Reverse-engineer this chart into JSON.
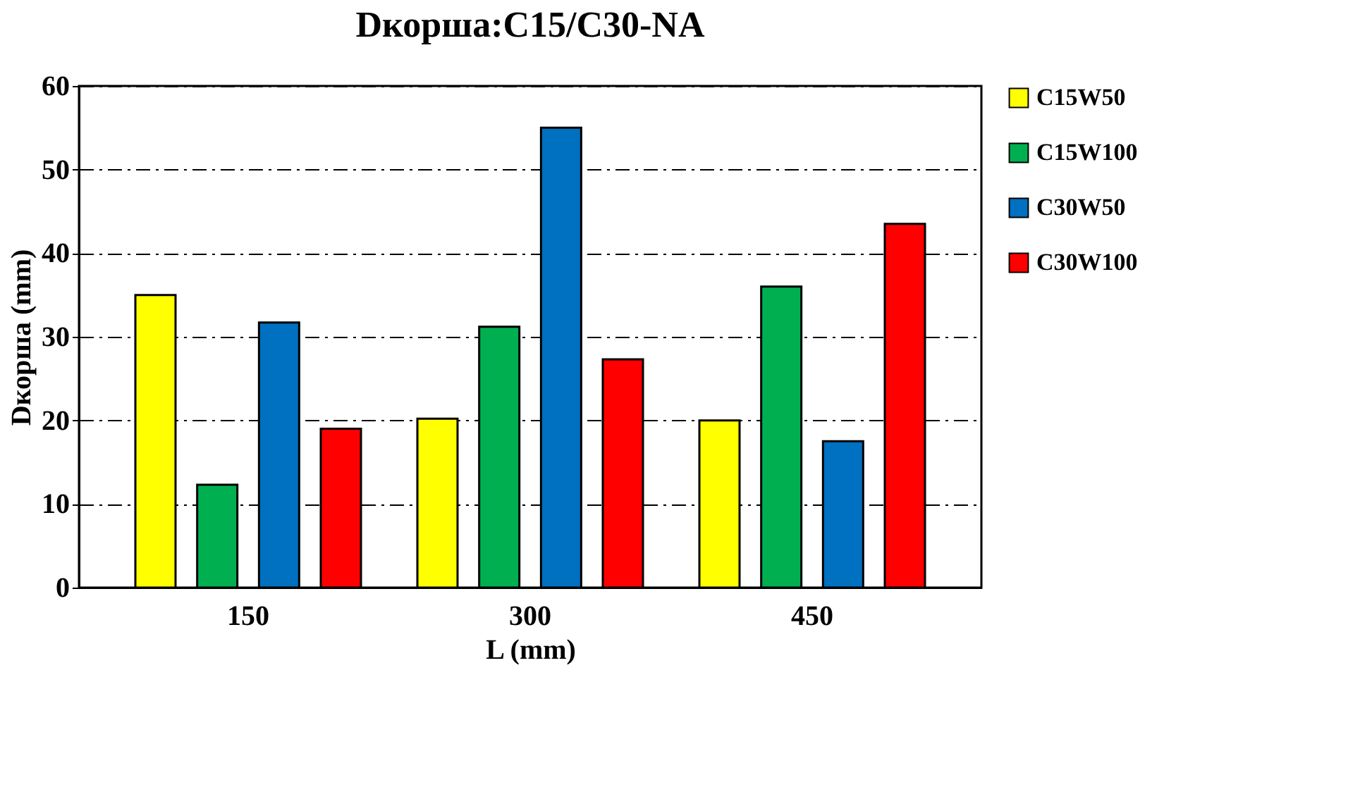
{
  "chart_data": {
    "type": "bar",
    "title": "Dкорша:C15/C30-NA",
    "xlabel": "L (mm)",
    "ylabel": "Dкорша (mm)",
    "categories": [
      "150",
      "300",
      "450"
    ],
    "series": [
      {
        "name": "C15W50",
        "color": "#ffff00",
        "values": [
          35,
          20.2,
          20
        ]
      },
      {
        "name": "C15W100",
        "color": "#00b050",
        "values": [
          12.3,
          31.2,
          36
        ]
      },
      {
        "name": "C30W50",
        "color": "#0070c0",
        "values": [
          31.7,
          55,
          17.5
        ]
      },
      {
        "name": "C30W100",
        "color": "#ff0000",
        "values": [
          19,
          27.3,
          43.5
        ]
      }
    ],
    "ylim": [
      0,
      60
    ],
    "yticks": [
      0,
      10,
      20,
      30,
      40,
      50,
      60
    ],
    "grid": "y",
    "legend": "right"
  }
}
